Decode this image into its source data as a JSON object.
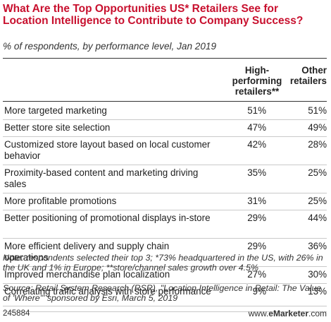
{
  "title": "What Are the Top Opportunities US* Retailers See for Location Intelligence to Contribute to Company Success?",
  "subtitle": "% of respondents, by performance level, Jan 2019",
  "columns": {
    "high": "High-performing retailers**",
    "other": "Other retailers"
  },
  "chart_data": {
    "type": "table",
    "columns": [
      "High-performing retailers**",
      "Other retailers"
    ],
    "rows": [
      {
        "label": "More targeted marketing",
        "high": "51%",
        "other": "51%"
      },
      {
        "label": "Better store site selection",
        "high": "47%",
        "other": "49%"
      },
      {
        "label": "Customized store layout based on local customer behavior",
        "high": "42%",
        "other": "28%"
      },
      {
        "label": "Proximity-based content and marketing driving sales",
        "high": "35%",
        "other": "25%"
      },
      {
        "label": "More profitable promotions",
        "high": "31%",
        "other": "25%"
      },
      {
        "label": "Better positioning of promotional displays in-store",
        "high": "29%",
        "other": "44%"
      },
      {
        "label": "More efficient delivery and supply chain operations",
        "high": "29%",
        "other": "36%"
      },
      {
        "label": "Improved merchandise plan localization",
        "high": "27%",
        "other": "30%"
      },
      {
        "label": "Correlating traffic analysis with store performance",
        "high": "9%",
        "other": "13%"
      }
    ]
  },
  "note": "Note: respondents selected their top 3; *73% headquartered in the US, with 26% in the UK and 1% in Europe; **store/channel sales growth over 4.5%",
  "source": "Source: Retail System Research (RSR), \"Location Intelligence in Retail: The Value of 'Where'\" sponsored by Esri, March 5, 2019",
  "chart_id": "245884",
  "brand": {
    "prefix": "www.",
    "name": "eMarketer",
    "suffix": ".com"
  }
}
